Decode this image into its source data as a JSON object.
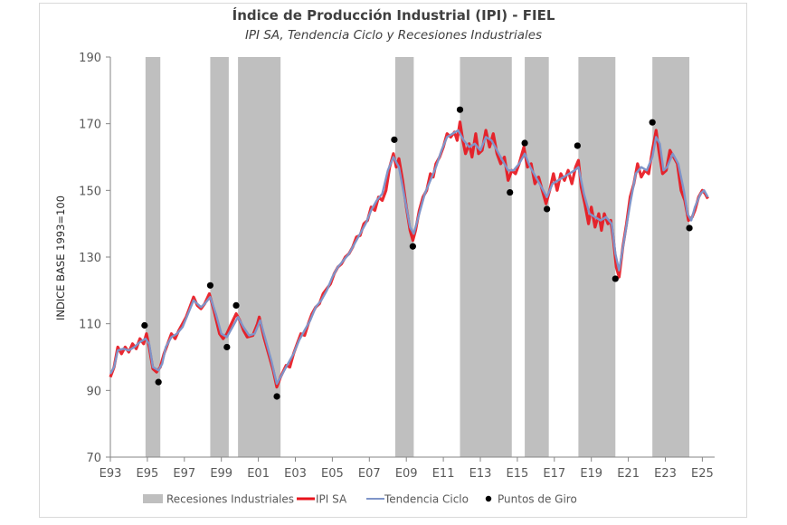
{
  "chart_data": {
    "type": "line",
    "title": "Índice de Producción Industrial (IPI) - FIEL",
    "subtitle": "IPI SA, Tendencia Ciclo y Recesiones Industriales",
    "xlabel": "",
    "ylabel": "INDICE BASE 1993=100",
    "ylim": [
      70,
      190
    ],
    "yticks": [
      70,
      90,
      110,
      130,
      150,
      170,
      190
    ],
    "xlim": [
      1993,
      2025.3
    ],
    "xticks": [
      {
        "x": 1993,
        "label": "E93"
      },
      {
        "x": 1995,
        "label": "E95"
      },
      {
        "x": 1997,
        "label": "E97"
      },
      {
        "x": 1999,
        "label": "E99"
      },
      {
        "x": 2001,
        "label": "E01"
      },
      {
        "x": 2003,
        "label": "E03"
      },
      {
        "x": 2005,
        "label": "E05"
      },
      {
        "x": 2007,
        "label": "E07"
      },
      {
        "x": 2009,
        "label": "E09"
      },
      {
        "x": 2011,
        "label": "E11"
      },
      {
        "x": 2013,
        "label": "E13"
      },
      {
        "x": 2015,
        "label": "E15"
      },
      {
        "x": 2017,
        "label": "E17"
      },
      {
        "x": 2019,
        "label": "E19"
      },
      {
        "x": 2021,
        "label": "E21"
      },
      {
        "x": 2023,
        "label": "E23"
      },
      {
        "x": 2025,
        "label": "E25"
      }
    ],
    "grid": false,
    "legend_position": "bottom",
    "legend": [
      {
        "key": "recessions",
        "label": "Recesiones Industriales"
      },
      {
        "key": "ipi",
        "label": "IPI SA"
      },
      {
        "key": "trend",
        "label": "Tendencia Ciclo"
      },
      {
        "key": "turning",
        "label": "Puntos de Giro"
      }
    ],
    "colors": {
      "recessions": "#bfbfbf",
      "ipi": "#e8121b",
      "trend": "#7f95c9",
      "turning": "#000000",
      "axis": "#868686"
    },
    "recessions": [
      [
        1994.9,
        1995.7
      ],
      [
        1998.4,
        1999.4
      ],
      [
        1999.9,
        2002.2
      ],
      [
        2008.4,
        2009.4
      ],
      [
        2011.9,
        2014.7
      ],
      [
        2015.4,
        2016.7
      ],
      [
        2018.3,
        2020.3
      ],
      [
        2022.3,
        2024.3
      ]
    ],
    "trend": [
      [
        1993.0,
        95
      ],
      [
        1993.2,
        97
      ],
      [
        1993.4,
        102
      ],
      [
        1993.7,
        102.5
      ],
      [
        1994.0,
        102
      ],
      [
        1994.3,
        103
      ],
      [
        1994.6,
        104.5
      ],
      [
        1994.9,
        105.5
      ],
      [
        1995.1,
        104
      ],
      [
        1995.3,
        97
      ],
      [
        1995.6,
        96
      ],
      [
        1995.8,
        98
      ],
      [
        1996.0,
        103
      ],
      [
        1996.3,
        106
      ],
      [
        1996.6,
        107
      ],
      [
        1996.9,
        109
      ],
      [
        1997.2,
        113
      ],
      [
        1997.5,
        117
      ],
      [
        1997.7,
        116
      ],
      [
        1997.9,
        115
      ],
      [
        1998.1,
        116
      ],
      [
        1998.4,
        118
      ],
      [
        1998.7,
        113
      ],
      [
        1999.0,
        107
      ],
      [
        1999.3,
        106
      ],
      [
        1999.6,
        109
      ],
      [
        1999.9,
        112
      ],
      [
        2000.2,
        109
      ],
      [
        2000.5,
        106.5
      ],
      [
        2000.8,
        107
      ],
      [
        2001.1,
        111
      ],
      [
        2001.4,
        105
      ],
      [
        2001.7,
        99
      ],
      [
        2002.0,
        92
      ],
      [
        2002.3,
        95
      ],
      [
        2002.6,
        98
      ],
      [
        2002.9,
        101
      ],
      [
        2003.2,
        105
      ],
      [
        2003.5,
        108
      ],
      [
        2003.8,
        111
      ],
      [
        2004.1,
        115
      ],
      [
        2004.4,
        117
      ],
      [
        2004.7,
        120
      ],
      [
        2005.0,
        124
      ],
      [
        2005.3,
        127
      ],
      [
        2005.6,
        129
      ],
      [
        2005.9,
        131
      ],
      [
        2006.2,
        134
      ],
      [
        2006.5,
        137
      ],
      [
        2006.8,
        140
      ],
      [
        2007.1,
        144
      ],
      [
        2007.4,
        147
      ],
      [
        2007.7,
        149
      ],
      [
        2008.0,
        156
      ],
      [
        2008.3,
        160
      ],
      [
        2008.6,
        157
      ],
      [
        2008.9,
        148
      ],
      [
        2009.2,
        139
      ],
      [
        2009.4,
        137
      ],
      [
        2009.7,
        143
      ],
      [
        2010.0,
        149
      ],
      [
        2010.3,
        153
      ],
      [
        2010.6,
        157
      ],
      [
        2010.9,
        162
      ],
      [
        2011.2,
        166
      ],
      [
        2011.5,
        167
      ],
      [
        2011.8,
        168
      ],
      [
        2012.1,
        165
      ],
      [
        2012.4,
        163
      ],
      [
        2012.7,
        164
      ],
      [
        2013.0,
        162
      ],
      [
        2013.3,
        166
      ],
      [
        2013.6,
        165
      ],
      [
        2013.9,
        162
      ],
      [
        2014.2,
        159
      ],
      [
        2014.5,
        156
      ],
      [
        2014.8,
        156
      ],
      [
        2015.1,
        158
      ],
      [
        2015.4,
        161
      ],
      [
        2015.7,
        157
      ],
      [
        2016.0,
        154
      ],
      [
        2016.3,
        151
      ],
      [
        2016.6,
        148
      ],
      [
        2016.9,
        152
      ],
      [
        2017.2,
        153
      ],
      [
        2017.5,
        154
      ],
      [
        2017.8,
        155
      ],
      [
        2018.1,
        156
      ],
      [
        2018.3,
        157
      ],
      [
        2018.6,
        149
      ],
      [
        2018.9,
        143
      ],
      [
        2019.2,
        142
      ],
      [
        2019.5,
        141
      ],
      [
        2019.8,
        142
      ],
      [
        2020.1,
        140
      ],
      [
        2020.3,
        131
      ],
      [
        2020.5,
        126
      ],
      [
        2020.8,
        136
      ],
      [
        2021.1,
        146
      ],
      [
        2021.4,
        155
      ],
      [
        2021.7,
        157
      ],
      [
        2022.0,
        156
      ],
      [
        2022.3,
        160
      ],
      [
        2022.5,
        166
      ],
      [
        2022.7,
        164
      ],
      [
        2022.9,
        156
      ],
      [
        2023.1,
        157
      ],
      [
        2023.4,
        161
      ],
      [
        2023.7,
        158
      ],
      [
        2024.0,
        150
      ],
      [
        2024.2,
        143
      ],
      [
        2024.4,
        141
      ],
      [
        2024.6,
        145
      ],
      [
        2024.9,
        149
      ],
      [
        2025.1,
        150
      ],
      [
        2025.3,
        148
      ]
    ],
    "ipi_sa": [
      [
        1993.0,
        94
      ],
      [
        1993.2,
        97
      ],
      [
        1993.4,
        103
      ],
      [
        1993.6,
        101
      ],
      [
        1993.8,
        103
      ],
      [
        1994.0,
        101.5
      ],
      [
        1994.2,
        104
      ],
      [
        1994.4,
        102.5
      ],
      [
        1994.6,
        105.5
      ],
      [
        1994.8,
        104
      ],
      [
        1994.95,
        107
      ],
      [
        1995.1,
        103
      ],
      [
        1995.3,
        96.5
      ],
      [
        1995.5,
        95.5
      ],
      [
        1995.7,
        97
      ],
      [
        1995.9,
        101
      ],
      [
        1996.1,
        104
      ],
      [
        1996.3,
        107
      ],
      [
        1996.5,
        105.5
      ],
      [
        1996.7,
        108
      ],
      [
        1996.9,
        110
      ],
      [
        1997.1,
        112
      ],
      [
        1997.3,
        115
      ],
      [
        1997.5,
        118
      ],
      [
        1997.7,
        115.5
      ],
      [
        1997.9,
        114.5
      ],
      [
        1998.1,
        116
      ],
      [
        1998.35,
        119
      ],
      [
        1998.6,
        114
      ],
      [
        1998.9,
        107
      ],
      [
        1999.1,
        105.5
      ],
      [
        1999.3,
        107
      ],
      [
        1999.5,
        109.5
      ],
      [
        1999.8,
        113
      ],
      [
        2000.0,
        111
      ],
      [
        2000.2,
        108
      ],
      [
        2000.4,
        106
      ],
      [
        2000.7,
        106.5
      ],
      [
        2000.95,
        110
      ],
      [
        2001.05,
        112
      ],
      [
        2001.3,
        106
      ],
      [
        2001.6,
        100
      ],
      [
        2001.8,
        96
      ],
      [
        2002.0,
        91
      ],
      [
        2002.2,
        94
      ],
      [
        2002.5,
        97.5
      ],
      [
        2002.7,
        97
      ],
      [
        2002.9,
        101
      ],
      [
        2003.1,
        104
      ],
      [
        2003.3,
        107
      ],
      [
        2003.5,
        106.5
      ],
      [
        2003.7,
        110
      ],
      [
        2003.9,
        113
      ],
      [
        2004.1,
        115
      ],
      [
        2004.3,
        116
      ],
      [
        2004.5,
        119
      ],
      [
        2004.7,
        120.5
      ],
      [
        2004.9,
        122
      ],
      [
        2005.1,
        125
      ],
      [
        2005.3,
        127
      ],
      [
        2005.5,
        128
      ],
      [
        2005.7,
        130
      ],
      [
        2005.9,
        131
      ],
      [
        2006.1,
        133
      ],
      [
        2006.3,
        136
      ],
      [
        2006.5,
        136.5
      ],
      [
        2006.7,
        140
      ],
      [
        2006.9,
        141
      ],
      [
        2007.1,
        145
      ],
      [
        2007.3,
        144
      ],
      [
        2007.5,
        148
      ],
      [
        2007.7,
        147
      ],
      [
        2007.9,
        150
      ],
      [
        2008.1,
        157
      ],
      [
        2008.3,
        161
      ],
      [
        2008.45,
        157
      ],
      [
        2008.6,
        159.5
      ],
      [
        2008.8,
        153
      ],
      [
        2009.0,
        145
      ],
      [
        2009.2,
        138
      ],
      [
        2009.35,
        135
      ],
      [
        2009.5,
        138
      ],
      [
        2009.7,
        144
      ],
      [
        2009.9,
        148
      ],
      [
        2010.1,
        150
      ],
      [
        2010.3,
        155
      ],
      [
        2010.45,
        154
      ],
      [
        2010.6,
        158
      ],
      [
        2010.8,
        160
      ],
      [
        2011.0,
        163
      ],
      [
        2011.2,
        167
      ],
      [
        2011.4,
        166
      ],
      [
        2011.6,
        167.5
      ],
      [
        2011.75,
        165
      ],
      [
        2011.9,
        170.5
      ],
      [
        2012.05,
        165
      ],
      [
        2012.2,
        161
      ],
      [
        2012.4,
        164
      ],
      [
        2012.55,
        160
      ],
      [
        2012.75,
        167
      ],
      [
        2012.9,
        161
      ],
      [
        2013.1,
        162
      ],
      [
        2013.3,
        168
      ],
      [
        2013.5,
        163
      ],
      [
        2013.7,
        167
      ],
      [
        2013.9,
        161
      ],
      [
        2014.1,
        158
      ],
      [
        2014.3,
        160
      ],
      [
        2014.5,
        153
      ],
      [
        2014.7,
        156
      ],
      [
        2014.9,
        155
      ],
      [
        2015.1,
        158
      ],
      [
        2015.35,
        163
      ],
      [
        2015.55,
        157
      ],
      [
        2015.75,
        158
      ],
      [
        2015.95,
        152
      ],
      [
        2016.15,
        154
      ],
      [
        2016.35,
        150
      ],
      [
        2016.55,
        146
      ],
      [
        2016.75,
        150
      ],
      [
        2016.95,
        155
      ],
      [
        2017.15,
        150
      ],
      [
        2017.35,
        155
      ],
      [
        2017.55,
        153
      ],
      [
        2017.75,
        156
      ],
      [
        2017.95,
        152
      ],
      [
        2018.15,
        157
      ],
      [
        2018.3,
        159
      ],
      [
        2018.45,
        151
      ],
      [
        2018.65,
        146
      ],
      [
        2018.85,
        140
      ],
      [
        2019.0,
        145
      ],
      [
        2019.2,
        139
      ],
      [
        2019.4,
        143
      ],
      [
        2019.55,
        138
      ],
      [
        2019.7,
        143
      ],
      [
        2019.9,
        140
      ],
      [
        2020.05,
        141
      ],
      [
        2020.2,
        135
      ],
      [
        2020.35,
        127
      ],
      [
        2020.5,
        124
      ],
      [
        2020.7,
        133
      ],
      [
        2020.9,
        140
      ],
      [
        2021.1,
        148
      ],
      [
        2021.3,
        152
      ],
      [
        2021.5,
        158
      ],
      [
        2021.7,
        154
      ],
      [
        2021.9,
        156
      ],
      [
        2022.1,
        155
      ],
      [
        2022.3,
        162
      ],
      [
        2022.5,
        168
      ],
      [
        2022.65,
        162
      ],
      [
        2022.85,
        155
      ],
      [
        2023.05,
        156
      ],
      [
        2023.25,
        162
      ],
      [
        2023.45,
        160
      ],
      [
        2023.65,
        158
      ],
      [
        2023.85,
        150
      ],
      [
        2024.05,
        147
      ],
      [
        2024.25,
        141
      ],
      [
        2024.45,
        142
      ],
      [
        2024.6,
        144
      ],
      [
        2024.8,
        148
      ],
      [
        2025.0,
        150
      ],
      [
        2025.15,
        149
      ],
      [
        2025.3,
        147.5
      ]
    ],
    "turning_points": [
      [
        1994.85,
        109.5
      ],
      [
        1995.6,
        92.5
      ],
      [
        1998.4,
        121.5
      ],
      [
        1999.3,
        103
      ],
      [
        1999.8,
        115.5
      ],
      [
        2002.0,
        88.2
      ],
      [
        2008.35,
        165.2
      ],
      [
        2009.35,
        133.2
      ],
      [
        2011.9,
        174.2
      ],
      [
        2014.6,
        149.4
      ],
      [
        2015.4,
        164.2
      ],
      [
        2016.6,
        144.4
      ],
      [
        2018.25,
        163.4
      ],
      [
        2020.3,
        123.5
      ],
      [
        2022.3,
        170.4
      ],
      [
        2024.3,
        138.7
      ]
    ]
  }
}
